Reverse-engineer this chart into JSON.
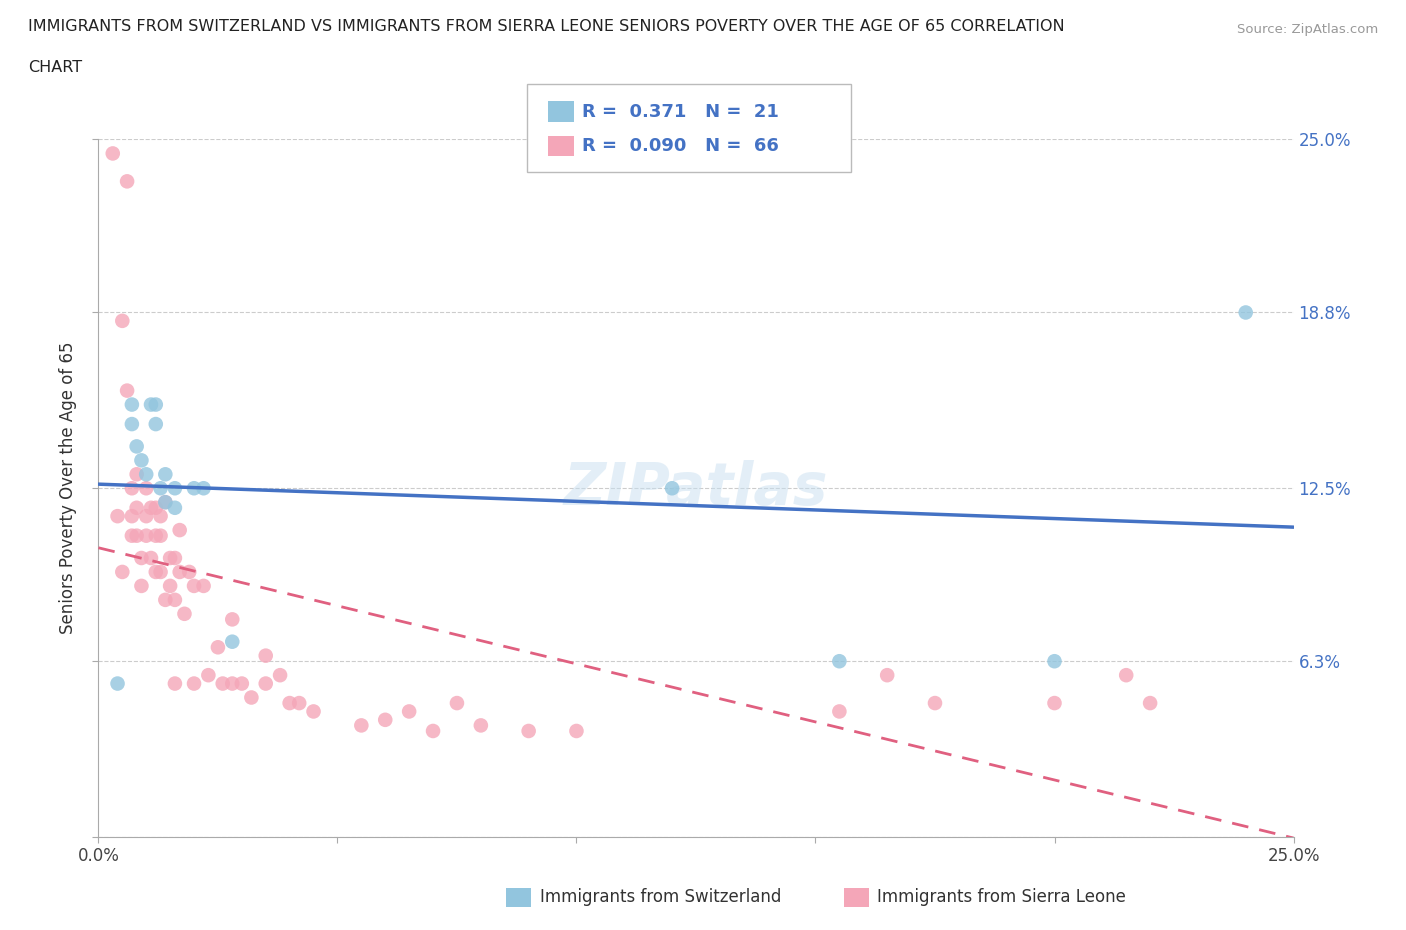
{
  "title_line1": "IMMIGRANTS FROM SWITZERLAND VS IMMIGRANTS FROM SIERRA LEONE SENIORS POVERTY OVER THE AGE OF 65 CORRELATION",
  "title_line2": "CHART",
  "source": "Source: ZipAtlas.com",
  "ylabel": "Seniors Poverty Over the Age of 65",
  "xlim": [
    0.0,
    0.25
  ],
  "ylim": [
    0.0,
    0.25
  ],
  "ytick_labels": [
    "",
    "6.3%",
    "12.5%",
    "18.8%",
    "25.0%"
  ],
  "ytick_positions": [
    0.0,
    0.063,
    0.125,
    0.188,
    0.25
  ],
  "xtick_positions": [
    0.0,
    0.05,
    0.1,
    0.15,
    0.2,
    0.25
  ],
  "xtick_labels": [
    "0.0%",
    "",
    "",
    "",
    "",
    "25.0%"
  ],
  "legend_R1": "0.371",
  "legend_N1": "21",
  "legend_R2": "0.090",
  "legend_N2": "66",
  "blue_color": "#92c5de",
  "pink_color": "#f4a6b8",
  "line_blue": "#4472c4",
  "line_pink": "#e06080",
  "watermark": "ZIPatlas",
  "switzerland_x": [
    0.004,
    0.007,
    0.007,
    0.008,
    0.009,
    0.01,
    0.011,
    0.012,
    0.012,
    0.013,
    0.014,
    0.014,
    0.016,
    0.016,
    0.02,
    0.022,
    0.028,
    0.12,
    0.155,
    0.2,
    0.24
  ],
  "switzerland_y": [
    0.055,
    0.155,
    0.148,
    0.14,
    0.135,
    0.13,
    0.155,
    0.155,
    0.148,
    0.125,
    0.13,
    0.12,
    0.125,
    0.118,
    0.125,
    0.125,
    0.07,
    0.125,
    0.063,
    0.063,
    0.188
  ],
  "sierraleone_x": [
    0.003,
    0.004,
    0.005,
    0.005,
    0.006,
    0.006,
    0.007,
    0.007,
    0.007,
    0.008,
    0.008,
    0.008,
    0.009,
    0.009,
    0.01,
    0.01,
    0.01,
    0.011,
    0.011,
    0.012,
    0.012,
    0.012,
    0.013,
    0.013,
    0.013,
    0.014,
    0.014,
    0.015,
    0.015,
    0.016,
    0.016,
    0.016,
    0.017,
    0.017,
    0.018,
    0.019,
    0.02,
    0.02,
    0.022,
    0.023,
    0.025,
    0.026,
    0.028,
    0.028,
    0.03,
    0.032,
    0.035,
    0.035,
    0.038,
    0.04,
    0.042,
    0.045,
    0.055,
    0.06,
    0.065,
    0.07,
    0.075,
    0.08,
    0.09,
    0.1,
    0.155,
    0.165,
    0.175,
    0.2,
    0.215,
    0.22
  ],
  "sierraleone_y": [
    0.245,
    0.115,
    0.185,
    0.095,
    0.16,
    0.235,
    0.108,
    0.115,
    0.125,
    0.108,
    0.118,
    0.13,
    0.09,
    0.1,
    0.115,
    0.108,
    0.125,
    0.1,
    0.118,
    0.095,
    0.108,
    0.118,
    0.095,
    0.108,
    0.115,
    0.085,
    0.12,
    0.09,
    0.1,
    0.055,
    0.085,
    0.1,
    0.095,
    0.11,
    0.08,
    0.095,
    0.09,
    0.055,
    0.09,
    0.058,
    0.068,
    0.055,
    0.078,
    0.055,
    0.055,
    0.05,
    0.055,
    0.065,
    0.058,
    0.048,
    0.048,
    0.045,
    0.04,
    0.042,
    0.045,
    0.038,
    0.048,
    0.04,
    0.038,
    0.038,
    0.045,
    0.058,
    0.048,
    0.048,
    0.058,
    0.048
  ]
}
